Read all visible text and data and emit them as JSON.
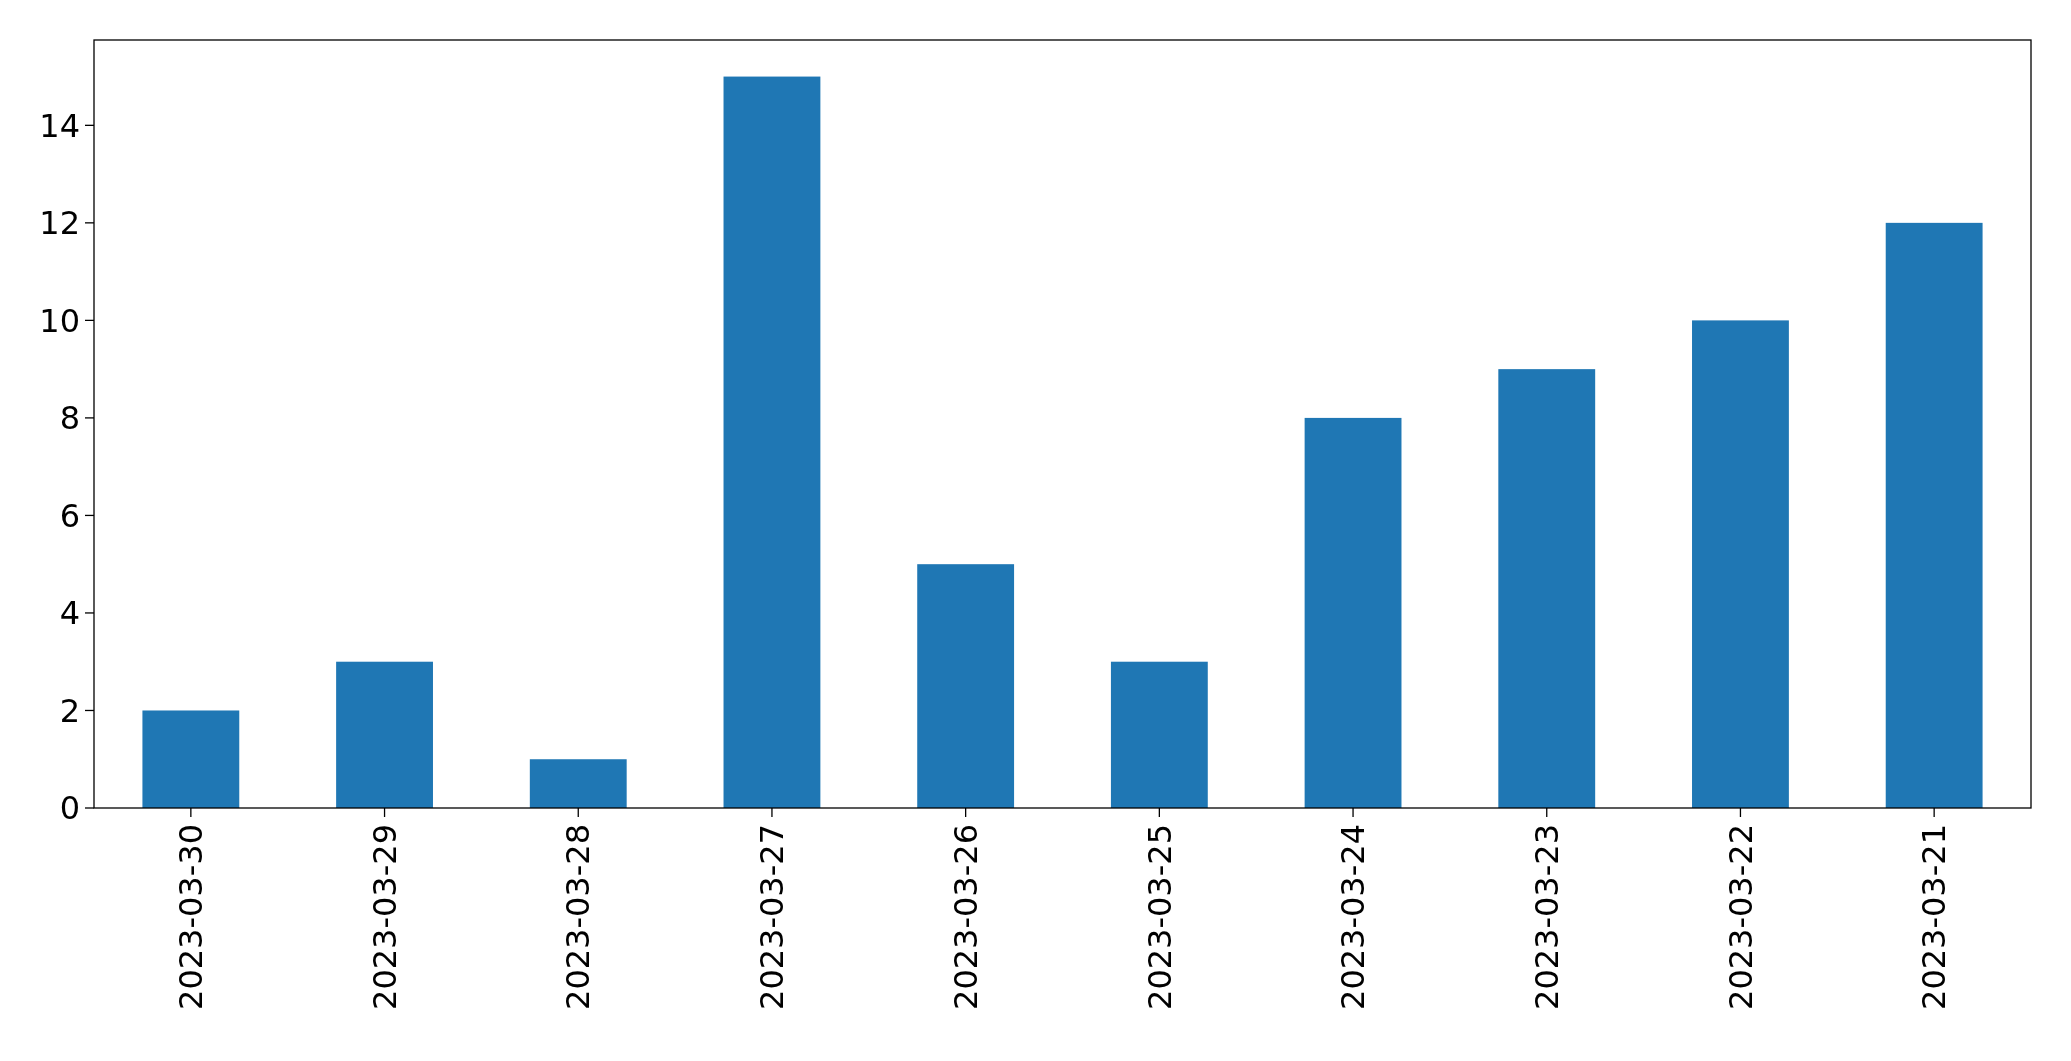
{
  "chart_data": {
    "type": "bar",
    "categories": [
      "2023-03-30",
      "2023-03-29",
      "2023-03-28",
      "2023-03-27",
      "2023-03-26",
      "2023-03-25",
      "2023-03-24",
      "2023-03-23",
      "2023-03-22",
      "2023-03-21"
    ],
    "values": [
      2,
      3,
      1,
      15,
      5,
      3,
      8,
      9,
      10,
      12
    ],
    "color": "#1f77b4",
    "ylim": [
      0,
      15.75
    ],
    "yticks": [
      0,
      2,
      4,
      6,
      8,
      10,
      12,
      14
    ],
    "grid": false
  }
}
